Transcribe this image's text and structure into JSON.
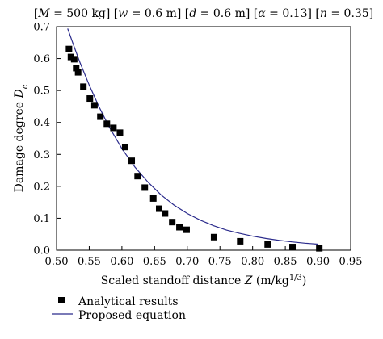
{
  "chart_data": {
    "type": "scatter",
    "title": "[M = 500 kg] [w = 0.6 m] [d = 0.6 m] [α = 0.13] [n = 0.35]",
    "title_parts": [
      "[",
      "M",
      " = 500 kg] [",
      "w",
      " = 0.6 m] [",
      "d",
      " = 0.6 m] [",
      "α",
      " = 0.13] [",
      "n",
      " = 0.35]"
    ],
    "xlabel_parts": [
      "Scaled standoff distance ",
      "Z",
      " (m/kg",
      "1/3",
      ")"
    ],
    "ylabel_parts": [
      "Damage degree ",
      "D",
      "c"
    ],
    "xlim": [
      0.5,
      0.95
    ],
    "ylim": [
      0,
      0.7
    ],
    "x_ticks": [
      "0.50",
      "0.55",
      "0.60",
      "0.65",
      "0.70",
      "0.75",
      "0.80",
      "0.85",
      "0.90",
      "0.95"
    ],
    "y_ticks": [
      "0.0",
      "0.1",
      "0.2",
      "0.3",
      "0.4",
      "0.5",
      "0.6",
      "0.7"
    ],
    "grid": false,
    "legend_placement": "bottom",
    "series": [
      {
        "name": "Analytical results",
        "kind": "scatter",
        "marker": "square",
        "color": "#000000",
        "points": [
          [
            0.519,
            0.63
          ],
          [
            0.522,
            0.605
          ],
          [
            0.527,
            0.598
          ],
          [
            0.53,
            0.57
          ],
          [
            0.533,
            0.557
          ],
          [
            0.541,
            0.512
          ],
          [
            0.551,
            0.475
          ],
          [
            0.558,
            0.454
          ],
          [
            0.567,
            0.418
          ],
          [
            0.577,
            0.396
          ],
          [
            0.587,
            0.383
          ],
          [
            0.597,
            0.368
          ],
          [
            0.605,
            0.323
          ],
          [
            0.615,
            0.28
          ],
          [
            0.624,
            0.232
          ],
          [
            0.635,
            0.196
          ],
          [
            0.648,
            0.162
          ],
          [
            0.657,
            0.13
          ],
          [
            0.666,
            0.115
          ],
          [
            0.677,
            0.088
          ],
          [
            0.688,
            0.072
          ],
          [
            0.699,
            0.064
          ],
          [
            0.741,
            0.041
          ],
          [
            0.781,
            0.028
          ],
          [
            0.823,
            0.018
          ],
          [
            0.861,
            0.01
          ],
          [
            0.902,
            0.006
          ]
        ]
      },
      {
        "name": "Proposed equation",
        "kind": "line",
        "color": "#2b2b8c",
        "points": [
          [
            0.517,
            0.694
          ],
          [
            0.525,
            0.648
          ],
          [
            0.535,
            0.592
          ],
          [
            0.55,
            0.517
          ],
          [
            0.565,
            0.449
          ],
          [
            0.58,
            0.388
          ],
          [
            0.6,
            0.318
          ],
          [
            0.62,
            0.26
          ],
          [
            0.64,
            0.213
          ],
          [
            0.66,
            0.173
          ],
          [
            0.68,
            0.141
          ],
          [
            0.7,
            0.115
          ],
          [
            0.72,
            0.094
          ],
          [
            0.74,
            0.077
          ],
          [
            0.76,
            0.063
          ],
          [
            0.78,
            0.053
          ],
          [
            0.8,
            0.044
          ],
          [
            0.82,
            0.037
          ],
          [
            0.84,
            0.031
          ],
          [
            0.86,
            0.026
          ],
          [
            0.88,
            0.022
          ],
          [
            0.9,
            0.019
          ]
        ]
      }
    ]
  }
}
